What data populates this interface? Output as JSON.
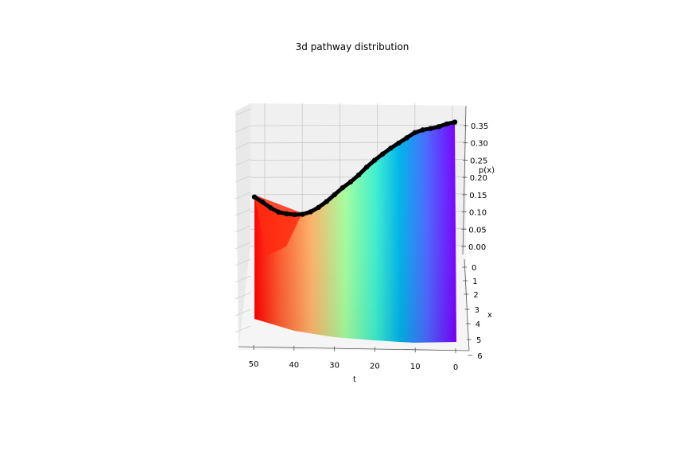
{
  "chart_data": {
    "type": "surface3d",
    "title": "3d pathway distribution",
    "xlabel": "t",
    "ylabel": "x",
    "zlabel": "p(x)",
    "t_ticks": [
      "50",
      "40",
      "30",
      "20",
      "10",
      "0"
    ],
    "x_ticks": [
      "0",
      "1",
      "2",
      "3",
      "4",
      "5",
      "6"
    ],
    "z_ticks": [
      "0.00",
      "0.05",
      "0.10",
      "0.15",
      "0.20",
      "0.25",
      "0.30",
      "0.35"
    ],
    "colormap": "rainbow",
    "pathway_color": "#000000",
    "pathway": {
      "t": [
        0,
        2,
        4,
        6,
        8,
        10,
        12,
        14,
        16,
        18,
        20,
        22,
        24,
        26,
        28,
        30,
        32,
        34,
        36,
        38,
        40,
        42,
        44,
        46,
        48,
        50
      ],
      "p": [
        0.365,
        0.36,
        0.352,
        0.347,
        0.343,
        0.335,
        0.32,
        0.305,
        0.29,
        0.273,
        0.255,
        0.235,
        0.212,
        0.192,
        0.175,
        0.155,
        0.135,
        0.118,
        0.105,
        0.098,
        0.097,
        0.1,
        0.105,
        0.118,
        0.135,
        0.15
      ]
    },
    "grid": true
  }
}
